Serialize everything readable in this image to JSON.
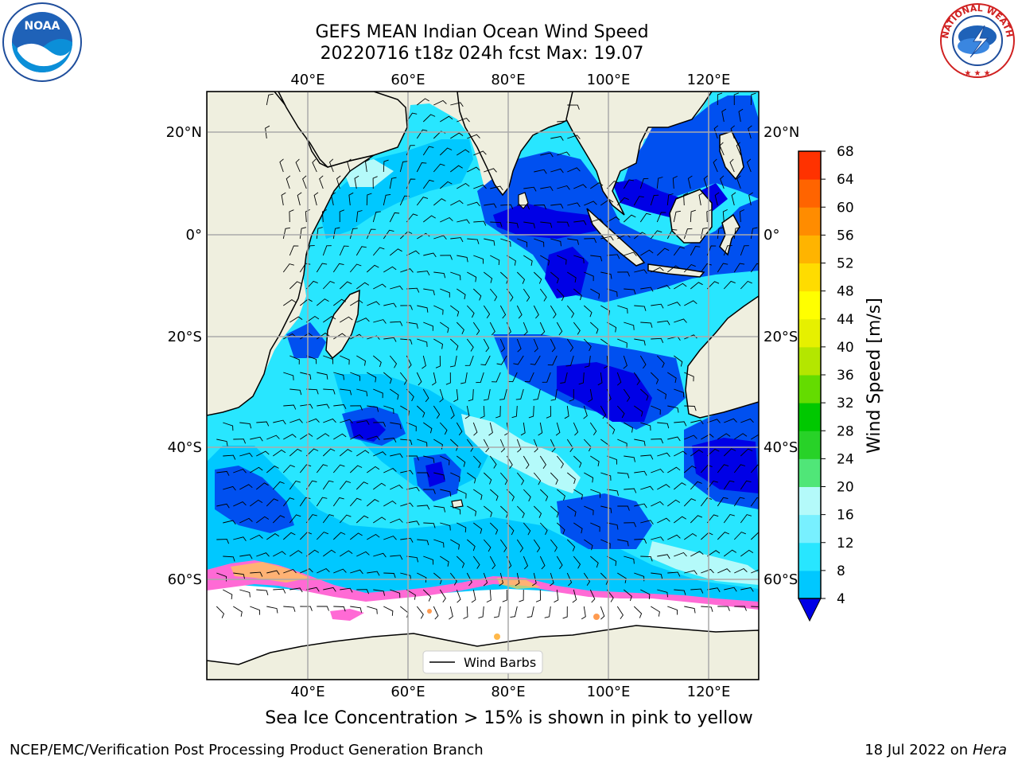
{
  "title_line1": "GEFS MEAN Indian Ocean Wind Speed",
  "title_line2": "20220716 t18z 024h fcst   Max: 19.07",
  "axes": {
    "lon_labels": [
      "40°E",
      "60°E",
      "80°E",
      "100°E",
      "120°E"
    ],
    "lat_labels": [
      "20°N",
      "0°",
      "20°S",
      "40°S",
      "60°S"
    ]
  },
  "colorbar": {
    "label": "Wind Speed [m/s]",
    "ticks": [
      "4",
      "8",
      "12",
      "16",
      "20",
      "24",
      "28",
      "32",
      "36",
      "40",
      "44",
      "48",
      "52",
      "56",
      "60",
      "64",
      "68"
    ],
    "colors": [
      "#0050f0",
      "#00c8ff",
      "#28e6ff",
      "#78f0ff",
      "#b4fafa",
      "#50e678",
      "#28d228",
      "#00c800",
      "#64dc00",
      "#b4e600",
      "#e6f000",
      "#ffff00",
      "#ffdc00",
      "#ffb400",
      "#ff8c00",
      "#ff6400",
      "#ff3200",
      "#ff0000"
    ],
    "under_color": "#0000e6"
  },
  "legend": {
    "label": "Wind Barbs"
  },
  "caption": "Sea Ice Concentration > 15% is shown in pink to yellow",
  "footer_left": "NCEP/EMC/Verification Post Processing Product Generation Branch",
  "footer_right_date": "18 Jul 2022 on ",
  "footer_right_machine": "Hera",
  "logos": {
    "left": "NOAA",
    "right": "NATIONAL WEATHER SERVICE"
  },
  "colors": {
    "land": "#efefdf",
    "ocean_base": "#28e6ff",
    "sea_ice": "#ffffff",
    "ice_edge": "#ff6ad5"
  }
}
